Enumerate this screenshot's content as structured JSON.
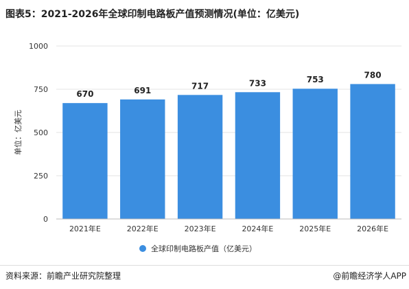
{
  "title": "图表5：2021-2026年全球印制电路板产值预测情况(单位：亿美元)",
  "source": "资料来源：前瞻产业研究院整理",
  "brand": "@前瞻经济学人APP",
  "chart_data": {
    "type": "bar",
    "categories": [
      "2021年E",
      "2022年E",
      "2023年E",
      "2024年E",
      "2025年E",
      "2026年E"
    ],
    "series": [
      {
        "name": "全球印制电路板产值（亿美元）",
        "values": [
          670,
          691,
          717,
          733,
          753,
          780
        ]
      }
    ],
    "ylabel": "单位：亿美元",
    "ylim": [
      0,
      1000
    ],
    "yticks": [
      0,
      250,
      500,
      750,
      1000
    ],
    "grid": true,
    "legend": "bottom",
    "color": "#3b8ee0"
  }
}
